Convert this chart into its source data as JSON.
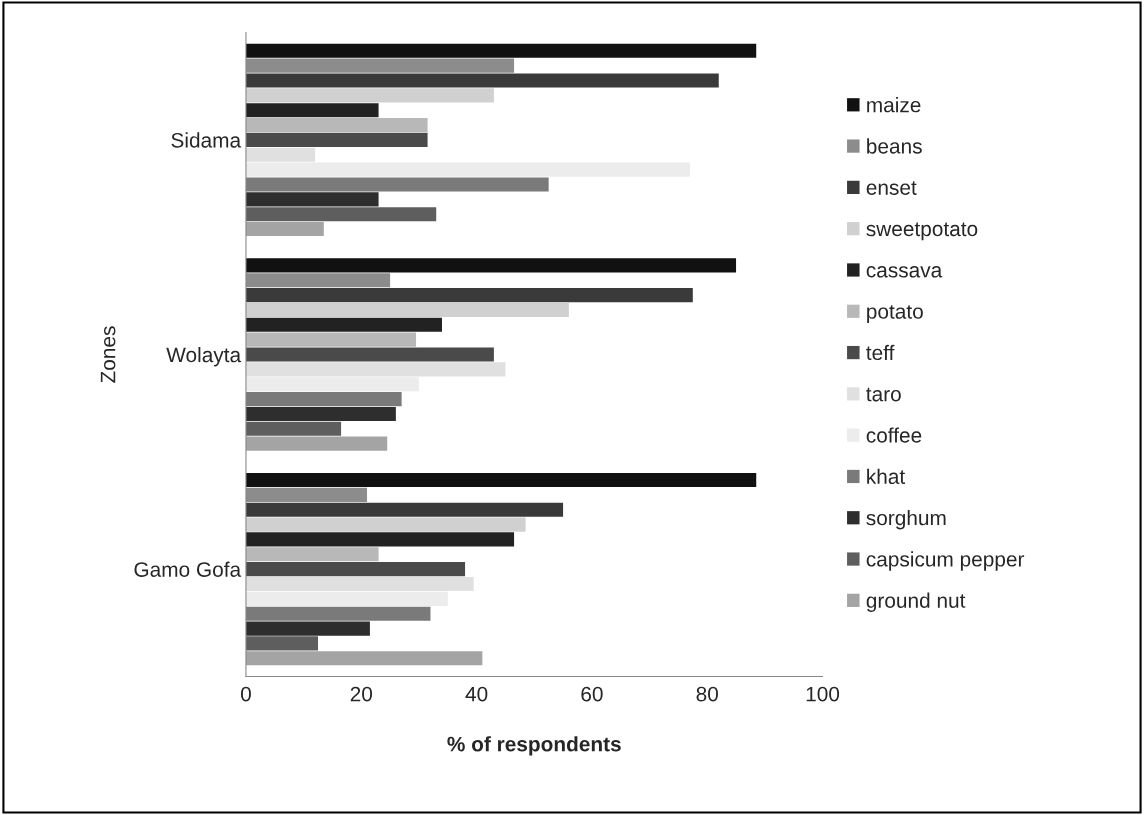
{
  "chart_data": {
    "type": "bar",
    "orientation": "horizontal",
    "xlabel": "% of respondents",
    "ylabel": "Zones",
    "categories": [
      "Sidama",
      "Wolayta",
      "Gamo Gofa"
    ],
    "xlim": [
      0,
      100
    ],
    "xticks": [
      0,
      20,
      40,
      60,
      80,
      100
    ],
    "grid": false,
    "legend": "right",
    "series": [
      {
        "name": "maize",
        "color": "#111111",
        "values": [
          88.5,
          85,
          88.5
        ]
      },
      {
        "name": "beans",
        "color": "#8c8c8c",
        "values": [
          46.5,
          25,
          21
        ]
      },
      {
        "name": "enset",
        "color": "#3a3a3a",
        "values": [
          82,
          77.5,
          55
        ]
      },
      {
        "name": "sweetpotato",
        "color": "#d0d0d0",
        "values": [
          43,
          56,
          48.5
        ]
      },
      {
        "name": "cassava",
        "color": "#222222",
        "values": [
          23,
          34,
          46.5
        ]
      },
      {
        "name": "potato",
        "color": "#b8b8b8",
        "values": [
          31.5,
          29.5,
          23
        ]
      },
      {
        "name": "teff",
        "color": "#4a4a4a",
        "values": [
          31.5,
          43,
          38
        ]
      },
      {
        "name": "taro",
        "color": "#e0e0e0",
        "values": [
          12,
          45,
          39.5
        ]
      },
      {
        "name": "coffee",
        "color": "#ececec",
        "values": [
          77,
          30,
          35
        ]
      },
      {
        "name": "khat",
        "color": "#7a7a7a",
        "values": [
          52.5,
          27,
          32
        ]
      },
      {
        "name": "sorghum",
        "color": "#2e2e2e",
        "values": [
          23,
          26,
          21.5
        ]
      },
      {
        "name": "capsicum pepper",
        "color": "#5e5e5e",
        "values": [
          33,
          16.5,
          12.5
        ]
      },
      {
        "name": "ground nut",
        "color": "#a4a4a4",
        "values": [
          13.5,
          24.5,
          41
        ]
      }
    ]
  }
}
